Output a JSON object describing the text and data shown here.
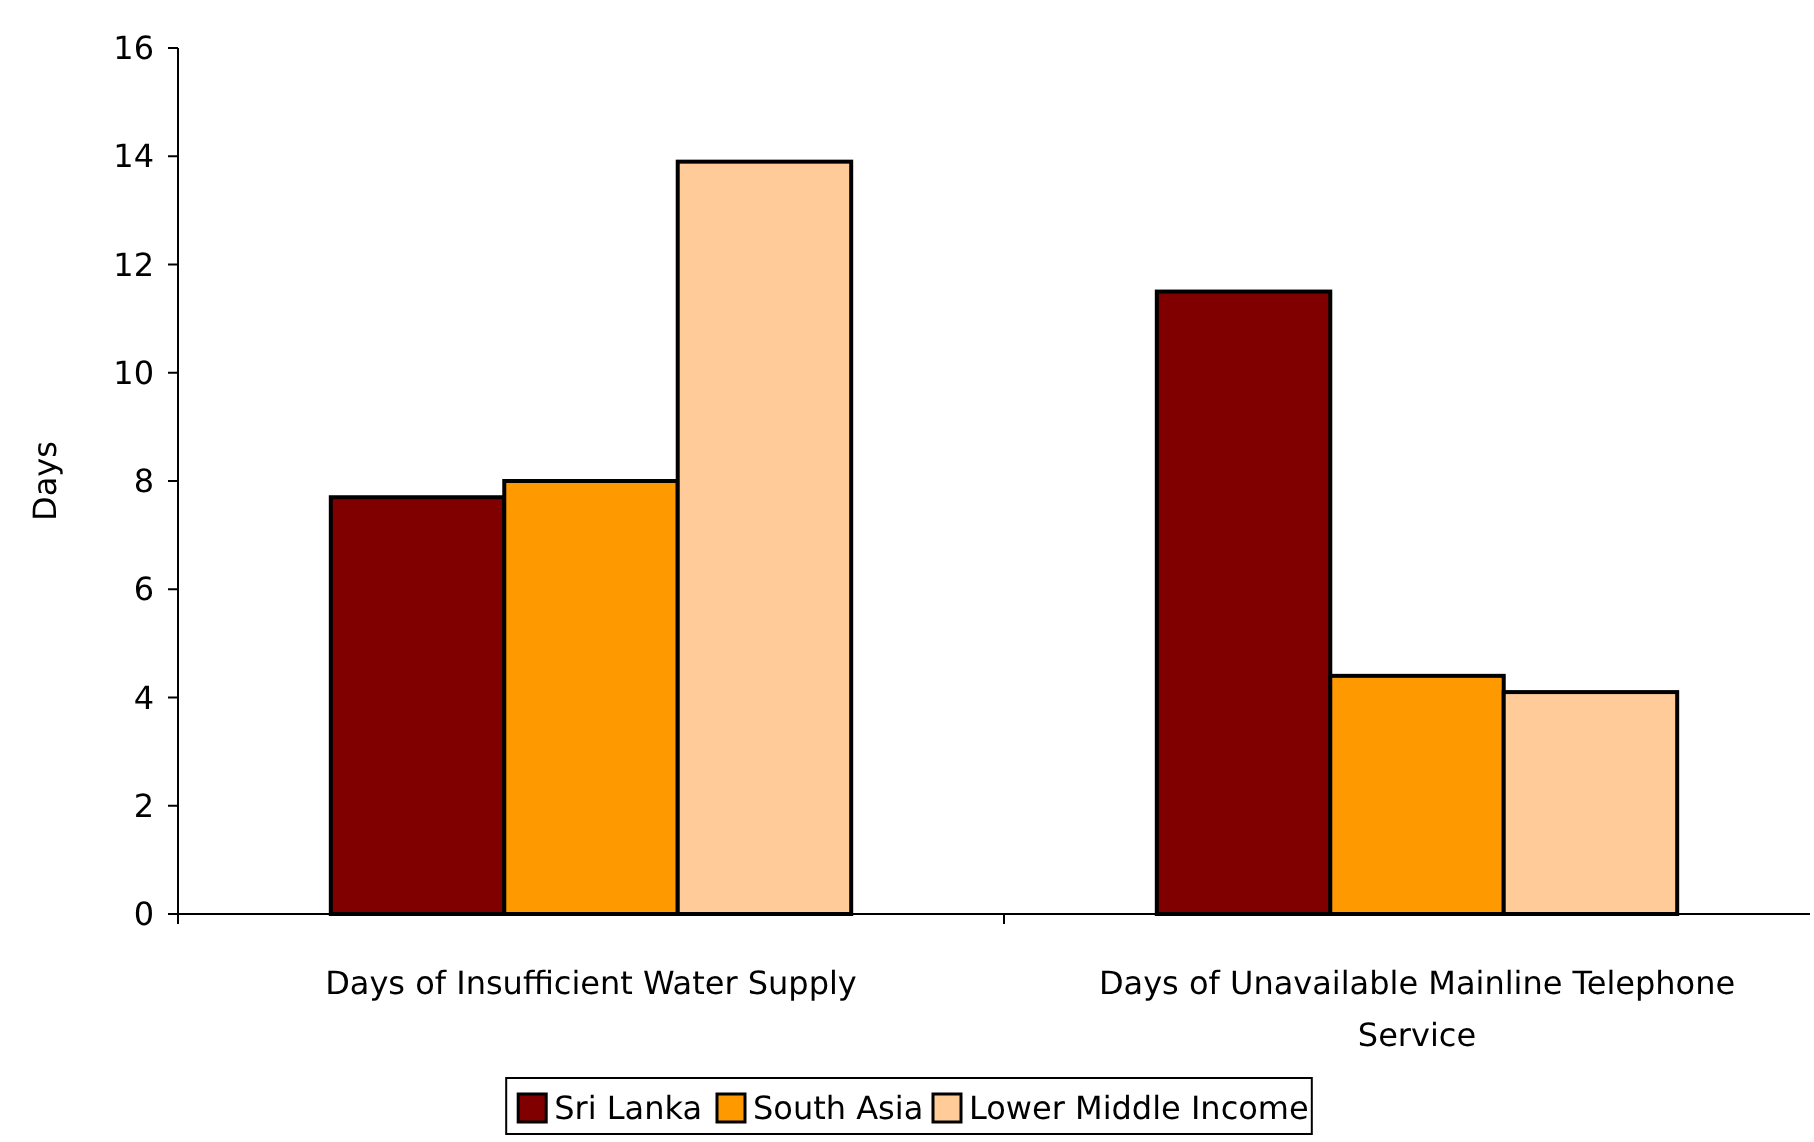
{
  "chart_data": {
    "type": "bar",
    "ylabel": "Days",
    "categories": [
      "Days of Insufficient Water Supply",
      "Days of Unavailable Mainline Telephone Service"
    ],
    "series": [
      {
        "name": "Sri Lanka",
        "color": "#800000",
        "values": [
          7.7,
          11.5
        ]
      },
      {
        "name": "South Asia",
        "color": "#ff9900",
        "values": [
          8.0,
          4.4
        ]
      },
      {
        "name": "Lower Middle Income",
        "color": "#ffcc99",
        "values": [
          13.9,
          4.1
        ]
      }
    ],
    "ylim": [
      0,
      16
    ],
    "yticks": [
      0,
      2,
      4,
      6,
      8,
      10,
      12,
      14,
      16
    ],
    "legend": "bottom",
    "grid": false
  }
}
